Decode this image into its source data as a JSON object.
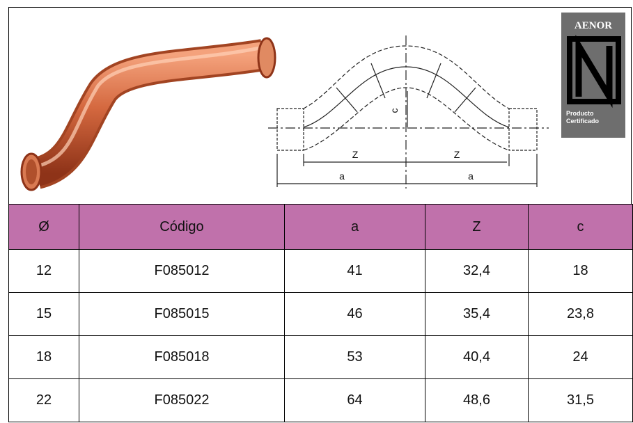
{
  "diagram": {
    "labels": {
      "c": "c",
      "z_left": "Z",
      "z_right": "Z",
      "a_left": "a",
      "a_right": "a"
    }
  },
  "logo": {
    "title": "AENOR",
    "line1": "Producto",
    "line2": "Certificado"
  },
  "table": {
    "header": [
      "Ø",
      "Código",
      "a",
      "Z",
      "c"
    ],
    "rows": [
      [
        "12",
        "F085012",
        "41",
        "32,4",
        "18"
      ],
      [
        "15",
        "F085015",
        "46",
        "35,4",
        "23,8"
      ],
      [
        "18",
        "F085018",
        "53",
        "40,4",
        "24"
      ],
      [
        "22",
        "F085022",
        "64",
        "48,6",
        "31,5"
      ]
    ]
  }
}
